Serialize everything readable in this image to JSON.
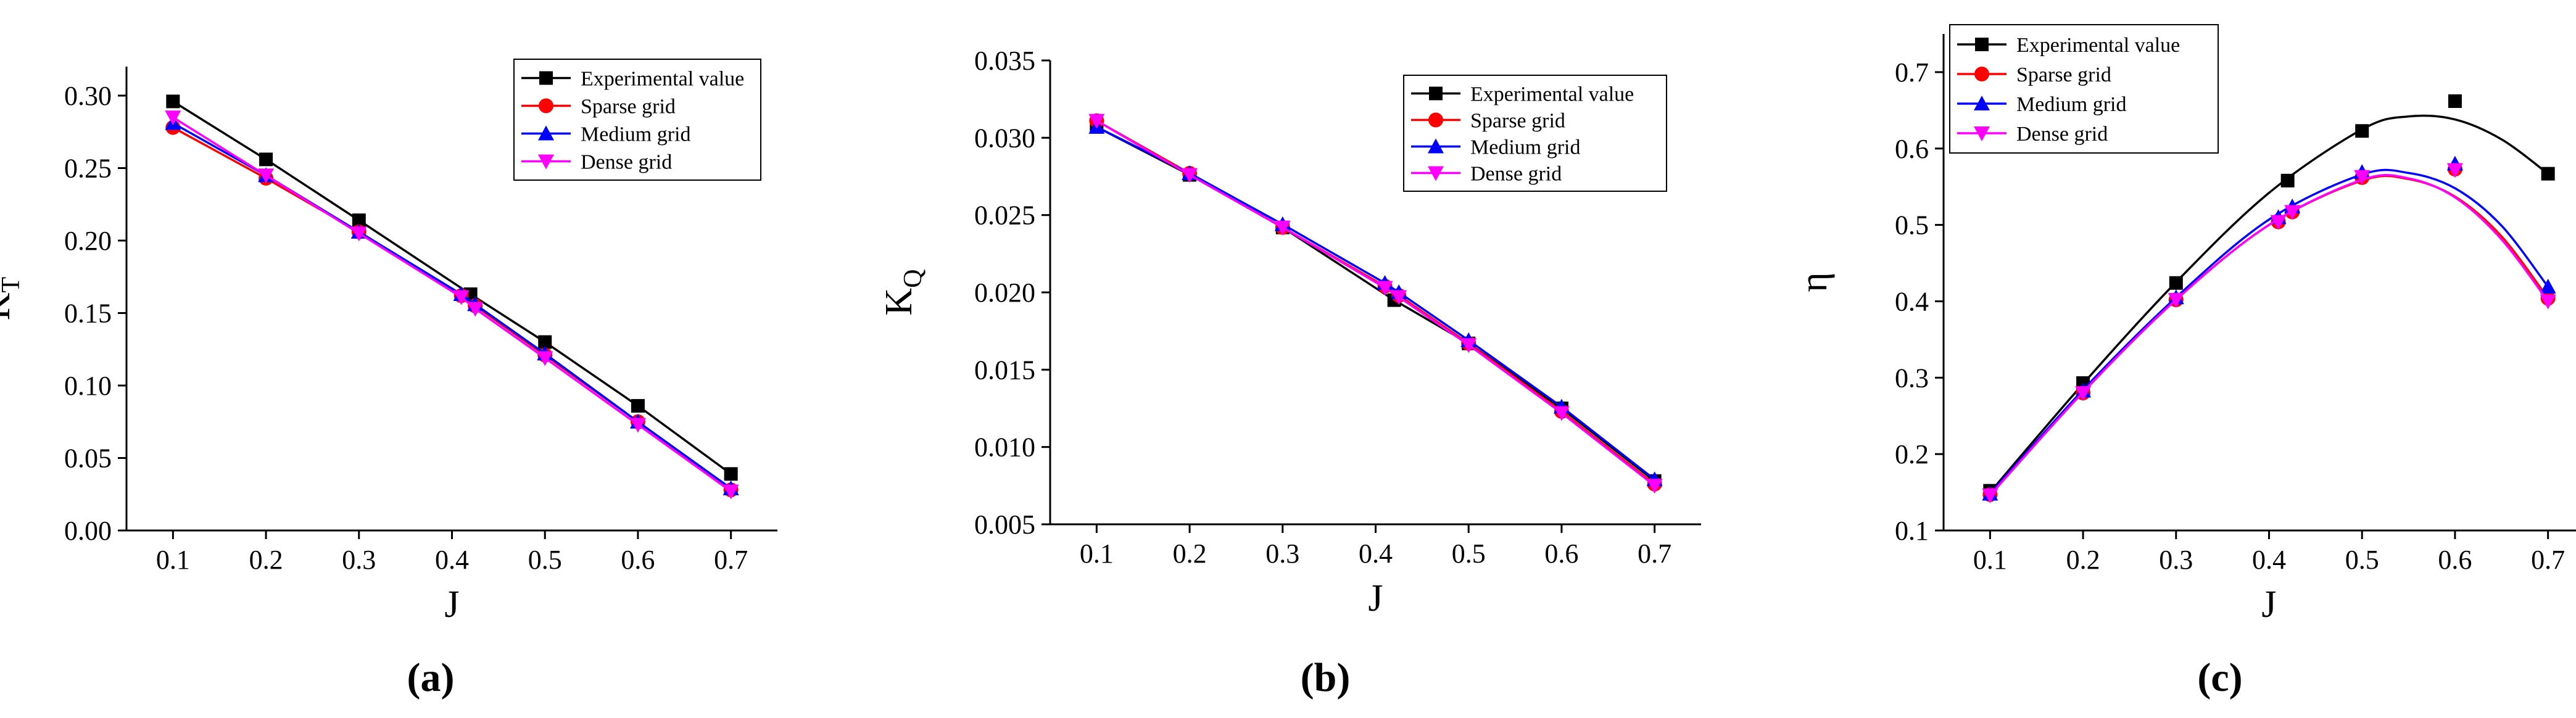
{
  "captions": [
    "(a)",
    "(b)",
    "(c)"
  ],
  "colors": {
    "Experimental value": "#000000",
    "Sparse grid": "#ff0000",
    "Medium grid": "#0000ff",
    "Dense grid": "#ff00ff"
  },
  "chart_data": [
    {
      "type": "line",
      "caption": "(a)",
      "xlabel": "J",
      "ylabel": "K",
      "ylabel_sub": "T",
      "xlim": [
        0.05,
        0.75
      ],
      "ylim": [
        0.0,
        0.32
      ],
      "xticks": [
        "0.1",
        "0.2",
        "0.3",
        "0.4",
        "0.5",
        "0.6",
        "0.7"
      ],
      "yticks": [
        "0.00",
        "0.05",
        "0.10",
        "0.15",
        "0.20",
        "0.25",
        "0.30"
      ],
      "legend": [
        "Experimental value",
        "Sparse grid",
        "Medium grid",
        "Dense grid"
      ],
      "legend_position": "top-right",
      "grid": false,
      "series": [
        {
          "name": "Experimental value",
          "marker": "square",
          "x": [
            0.1,
            0.2,
            0.3,
            0.42,
            0.5,
            0.6,
            0.7
          ],
          "y": [
            0.296,
            0.256,
            0.214,
            0.163,
            0.13,
            0.086,
            0.039
          ]
        },
        {
          "name": "Sparse grid",
          "marker": "circle",
          "x": [
            0.1,
            0.2,
            0.3,
            0.41,
            0.425,
            0.5,
            0.6,
            0.7
          ],
          "y": [
            0.278,
            0.243,
            0.206,
            0.162,
            0.155,
            0.121,
            0.075,
            0.028
          ]
        },
        {
          "name": "Medium grid",
          "marker": "triangle-up",
          "x": [
            0.1,
            0.2,
            0.3,
            0.41,
            0.425,
            0.5,
            0.6,
            0.7
          ],
          "y": [
            0.281,
            0.245,
            0.206,
            0.163,
            0.156,
            0.122,
            0.075,
            0.029
          ]
        },
        {
          "name": "Dense grid",
          "marker": "triangle-down",
          "x": [
            0.1,
            0.2,
            0.3,
            0.41,
            0.425,
            0.5,
            0.6,
            0.7
          ],
          "y": [
            0.285,
            0.245,
            0.205,
            0.161,
            0.153,
            0.119,
            0.073,
            0.027
          ]
        }
      ]
    },
    {
      "type": "line",
      "caption": "(b)",
      "xlabel": "J",
      "ylabel": "K",
      "ylabel_sub": "Q",
      "xlim": [
        0.05,
        0.75
      ],
      "ylim": [
        0.005,
        0.035
      ],
      "xticks": [
        "0.1",
        "0.2",
        "0.3",
        "0.4",
        "0.5",
        "0.6",
        "0.7"
      ],
      "yticks": [
        "0.005",
        "0.010",
        "0.015",
        "0.020",
        "0.025",
        "0.030",
        "0.035"
      ],
      "legend": [
        "Experimental value",
        "Sparse grid",
        "Medium grid",
        "Dense grid"
      ],
      "legend_position": "top-right",
      "grid": false,
      "series": [
        {
          "name": "Experimental value",
          "marker": "square",
          "x": [
            0.1,
            0.2,
            0.3,
            0.42,
            0.5,
            0.6,
            0.7
          ],
          "y": [
            0.0307,
            0.0276,
            0.0242,
            0.0195,
            0.0167,
            0.0125,
            0.0078
          ]
        },
        {
          "name": "Sparse grid",
          "marker": "circle",
          "x": [
            0.1,
            0.2,
            0.3,
            0.41,
            0.425,
            0.5,
            0.6,
            0.7
          ],
          "y": [
            0.0311,
            0.0277,
            0.0242,
            0.0204,
            0.0198,
            0.0167,
            0.0123,
            0.0076
          ]
        },
        {
          "name": "Medium grid",
          "marker": "triangle-up",
          "x": [
            0.1,
            0.2,
            0.3,
            0.41,
            0.425,
            0.5,
            0.6,
            0.7
          ],
          "y": [
            0.0307,
            0.0277,
            0.0244,
            0.0206,
            0.02,
            0.0169,
            0.0126,
            0.0079
          ]
        },
        {
          "name": "Dense grid",
          "marker": "triangle-down",
          "x": [
            0.1,
            0.2,
            0.3,
            0.41,
            0.425,
            0.5,
            0.6,
            0.7
          ],
          "y": [
            0.0311,
            0.0276,
            0.0242,
            0.0203,
            0.0197,
            0.0166,
            0.0122,
            0.0075
          ]
        }
      ]
    },
    {
      "type": "line",
      "caption": "(c)",
      "xlabel": "J",
      "ylabel": "η",
      "ylabel_sub": "",
      "xlim": [
        0.05,
        0.75
      ],
      "ylim": [
        0.1,
        0.75
      ],
      "xticks": [
        "0.1",
        "0.2",
        "0.3",
        "0.4",
        "0.5",
        "0.6",
        "0.7"
      ],
      "yticks": [
        "0.1",
        "0.2",
        "0.3",
        "0.4",
        "0.5",
        "0.6",
        "0.7"
      ],
      "legend": [
        "Experimental value",
        "Sparse grid",
        "Medium grid",
        "Dense grid"
      ],
      "legend_position": "top-left",
      "grid": false,
      "series": [
        {
          "name": "Experimental value",
          "marker": "square",
          "x": [
            0.1,
            0.2,
            0.3,
            0.42,
            0.5,
            0.6,
            0.7
          ],
          "y": [
            0.152,
            0.293,
            0.424,
            0.558,
            0.623,
            0.662,
            0.567
          ],
          "curve_x": [
            0.1,
            0.2,
            0.3,
            0.4,
            0.5,
            0.55,
            0.6,
            0.65,
            0.7
          ],
          "curve_y": [
            0.15,
            0.292,
            0.425,
            0.542,
            0.625,
            0.642,
            0.638,
            0.612,
            0.567
          ]
        },
        {
          "name": "Sparse grid",
          "marker": "circle",
          "x": [
            0.1,
            0.2,
            0.3,
            0.41,
            0.425,
            0.5,
            0.6,
            0.7
          ],
          "y": [
            0.147,
            0.28,
            0.402,
            0.504,
            0.517,
            0.562,
            0.573,
            0.404
          ],
          "curve_x": [
            0.1,
            0.2,
            0.3,
            0.4,
            0.5,
            0.55,
            0.6,
            0.65,
            0.7
          ],
          "curve_y": [
            0.147,
            0.281,
            0.402,
            0.5,
            0.558,
            0.56,
            0.537,
            0.485,
            0.404
          ]
        },
        {
          "name": "Medium grid",
          "marker": "triangle-up",
          "x": [
            0.1,
            0.2,
            0.3,
            0.41,
            0.425,
            0.5,
            0.6,
            0.7
          ],
          "y": [
            0.148,
            0.283,
            0.405,
            0.51,
            0.524,
            0.569,
            0.58,
            0.419
          ],
          "curve_x": [
            0.1,
            0.2,
            0.3,
            0.4,
            0.5,
            0.55,
            0.6,
            0.65,
            0.7
          ],
          "curve_y": [
            0.148,
            0.284,
            0.405,
            0.507,
            0.566,
            0.568,
            0.548,
            0.499,
            0.419
          ]
        },
        {
          "name": "Dense grid",
          "marker": "triangle-down",
          "x": [
            0.1,
            0.2,
            0.3,
            0.41,
            0.425,
            0.5,
            0.6,
            0.7
          ],
          "y": [
            0.146,
            0.28,
            0.402,
            0.504,
            0.517,
            0.563,
            0.572,
            0.4
          ],
          "curve_x": [
            0.1,
            0.2,
            0.3,
            0.4,
            0.5,
            0.55,
            0.6,
            0.65,
            0.7
          ],
          "curve_y": [
            0.146,
            0.281,
            0.402,
            0.5,
            0.559,
            0.561,
            0.536,
            0.481,
            0.4
          ]
        }
      ]
    }
  ]
}
